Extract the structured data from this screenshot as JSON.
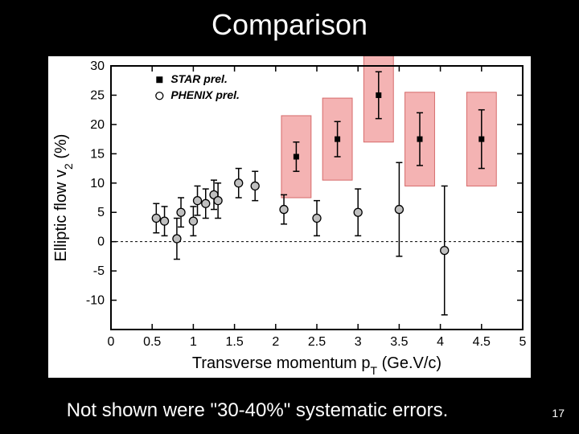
{
  "slide": {
    "title": "Comparison",
    "caption": "Not shown were \"30-40%\" systematic errors.",
    "page_number": "17",
    "background_color": "#000000"
  },
  "chart": {
    "type": "scatter-errorbar",
    "background_color": "#ffffff",
    "plot_border_color": "#000000",
    "plot_border_width": 2,
    "axis_tick_color": "#000000",
    "axis_label_fontsize": 20,
    "tick_label_fontsize": 16,
    "x": {
      "label": "Transverse momentum p_T (Ge.V/c)",
      "min": 0,
      "max": 5,
      "ticks": [
        0,
        0.5,
        1,
        1.5,
        2,
        2.5,
        3,
        3.5,
        4,
        4.5,
        5
      ],
      "tick_labels": [
        "0",
        "0.5",
        "1",
        "1.5",
        "2",
        "2.5",
        "3",
        "3.5",
        "4",
        "4.5",
        "5"
      ]
    },
    "y": {
      "label": "Elliptic flow v_2 (%)",
      "min": -15,
      "max": 30,
      "ticks": [
        -15,
        -10,
        -5,
        0,
        5,
        10,
        15,
        20,
        25,
        30
      ],
      "tick_labels": [
        "",
        "-10",
        "-5",
        "0",
        "5",
        "10",
        "15",
        "20",
        "25",
        "30"
      ]
    },
    "zero_line": {
      "y": 0,
      "dash": "3,3",
      "color": "#000000",
      "width": 1
    },
    "legend": {
      "x": 0.55,
      "y_top": 27.5,
      "fontsize": 14,
      "font_style": "italic",
      "entries": [
        {
          "marker": "filled-square",
          "label": "STAR prel."
        },
        {
          "marker": "open-circle",
          "label": "PHENIX prel."
        }
      ]
    },
    "series": [
      {
        "name": "STAR prel.",
        "marker": "filled-square",
        "marker_size": 7,
        "marker_color": "#000000",
        "errorbar_color": "#000000",
        "errorbar_width": 1.5,
        "sys_box_fill": "#f4b3b3",
        "sys_box_stroke": "#d66a6a",
        "sys_box_halfwidth": 0.18,
        "points": [
          {
            "x": 2.25,
            "y": 14.5,
            "elo": 2.5,
            "ehi": 2.5,
            "sys_lo": 7.0,
            "sys_hi": 7.0
          },
          {
            "x": 2.75,
            "y": 17.5,
            "elo": 3.0,
            "ehi": 3.0,
            "sys_lo": 7.0,
            "sys_hi": 7.0
          },
          {
            "x": 3.25,
            "y": 25.0,
            "elo": 4.0,
            "ehi": 4.0,
            "sys_lo": 8.0,
            "sys_hi": 8.0
          },
          {
            "x": 3.75,
            "y": 17.5,
            "elo": 4.5,
            "ehi": 4.5,
            "sys_lo": 8.0,
            "sys_hi": 8.0
          },
          {
            "x": 4.5,
            "y": 17.5,
            "elo": 5.0,
            "ehi": 5.0,
            "sys_lo": 8.0,
            "sys_hi": 8.0
          }
        ]
      },
      {
        "name": "PHENIX prel.",
        "marker": "open-circle",
        "marker_size": 5,
        "marker_fill": "#bfbfbf",
        "marker_stroke": "#000000",
        "errorbar_color": "#000000",
        "errorbar_width": 1.5,
        "points": [
          {
            "x": 0.55,
            "y": 4.0,
            "elo": 2.5,
            "ehi": 2.5
          },
          {
            "x": 0.65,
            "y": 3.5,
            "elo": 2.5,
            "ehi": 2.5
          },
          {
            "x": 0.8,
            "y": 0.5,
            "elo": 3.5,
            "ehi": 3.5
          },
          {
            "x": 0.85,
            "y": 5.0,
            "elo": 2.5,
            "ehi": 2.5
          },
          {
            "x": 1.0,
            "y": 3.5,
            "elo": 2.5,
            "ehi": 2.5
          },
          {
            "x": 1.05,
            "y": 7.0,
            "elo": 2.5,
            "ehi": 2.5
          },
          {
            "x": 1.15,
            "y": 6.5,
            "elo": 2.5,
            "ehi": 2.5
          },
          {
            "x": 1.25,
            "y": 8.0,
            "elo": 2.5,
            "ehi": 2.5
          },
          {
            "x": 1.3,
            "y": 7.0,
            "elo": 3.0,
            "ehi": 3.0
          },
          {
            "x": 1.55,
            "y": 10.0,
            "elo": 2.5,
            "ehi": 2.5
          },
          {
            "x": 1.75,
            "y": 9.5,
            "elo": 2.5,
            "ehi": 2.5
          },
          {
            "x": 2.1,
            "y": 5.5,
            "elo": 2.5,
            "ehi": 2.5
          },
          {
            "x": 2.5,
            "y": 4.0,
            "elo": 3.0,
            "ehi": 3.0
          },
          {
            "x": 3.0,
            "y": 5.0,
            "elo": 4.0,
            "ehi": 4.0
          },
          {
            "x": 3.5,
            "y": 5.5,
            "elo": 8.0,
            "ehi": 8.0
          },
          {
            "x": 4.05,
            "y": -1.5,
            "elo": 11.0,
            "ehi": 11.0
          }
        ]
      }
    ]
  }
}
